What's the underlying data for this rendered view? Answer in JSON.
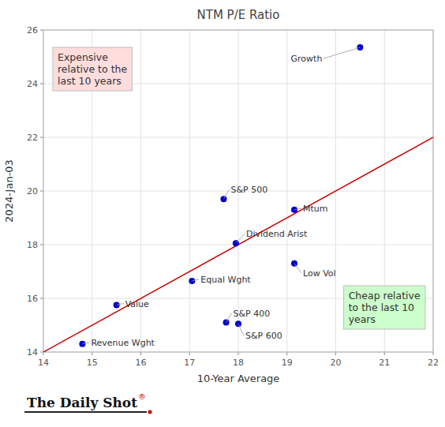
{
  "chart_data": {
    "type": "scatter",
    "title": "NTM P/E Ratio",
    "x_label": "10-Year Average",
    "y_label": "2024-Jan-03",
    "xlim": [
      14,
      22
    ],
    "ylim": [
      14,
      26
    ],
    "xticks": [
      14,
      15,
      16,
      17,
      18,
      19,
      20,
      21,
      22
    ],
    "yticks": [
      14,
      16,
      18,
      20,
      22,
      24,
      26
    ],
    "grid": true,
    "color": "#0000cc",
    "x": [
      20.5,
      17.7,
      19.15,
      17.95,
      17.05,
      19.15,
      15.5,
      17.75,
      18.0,
      14.8
    ],
    "values": [
      25.35,
      19.7,
      19.3,
      18.05,
      16.65,
      17.3,
      15.75,
      15.1,
      15.05,
      14.3
    ],
    "point_labels": [
      "Growth",
      "S&P 500",
      "Mtum",
      "Dividend Arist",
      "Equal Wght",
      "Low Vol",
      "Value",
      "S&P 400",
      "S&P 600",
      "Revenue Wght"
    ],
    "reference_line": {
      "x": [
        14,
        22
      ],
      "y": [
        14,
        22
      ],
      "color": "#cc0000"
    },
    "annotations": [
      {
        "text": "Expensive\nrelative to the\nlast 10 years",
        "color": "#ffdddd"
      },
      {
        "text": "Cheap relative\nto the last 10\nyears",
        "color": "#ccffcc"
      }
    ],
    "watermark": "The Daily Shot",
    "watermark_symbol": "®"
  }
}
